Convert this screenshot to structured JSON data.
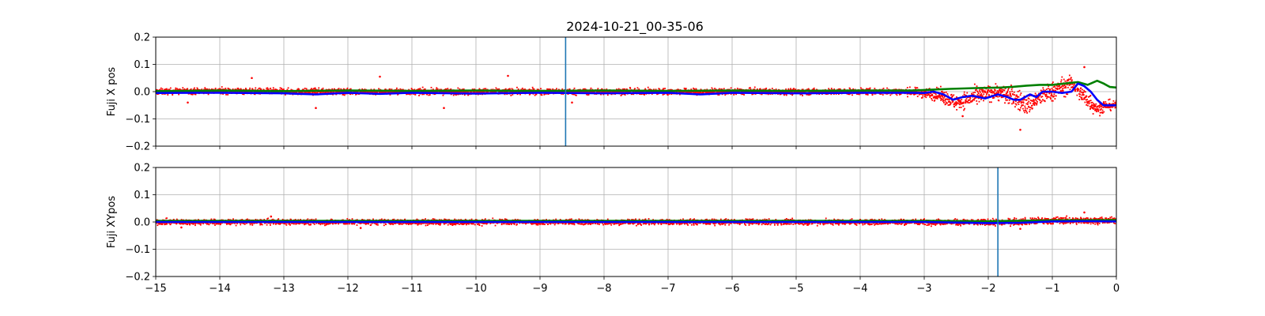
{
  "chart_data": {
    "title": "2024-10-21_00-35-06",
    "type": "scatter",
    "xlim": [
      -15,
      0
    ],
    "xticks": [
      -15,
      -14,
      -13,
      -12,
      -11,
      -10,
      -9,
      -8,
      -7,
      -6,
      -5,
      -4,
      -3,
      -2,
      -1,
      0
    ],
    "xtick_labels": [
      "−15",
      "−14",
      "−13",
      "−12",
      "−11",
      "−10",
      "−9",
      "−8",
      "−7",
      "−6",
      "−5",
      "−4",
      "−3",
      "−2",
      "−1",
      "0"
    ],
    "grid": true,
    "colors": {
      "points": "#ff0000",
      "blue": "#0000ff",
      "green": "#008000",
      "vline": "#1f77b4",
      "grid": "#b0b0b0"
    },
    "panels": [
      {
        "ylabel": "Fuji X pos",
        "ylim": [
          -0.2,
          0.2
        ],
        "yticks": [
          -0.2,
          -0.1,
          0.0,
          0.1,
          0.2
        ],
        "ytick_labels": [
          "−0.2",
          "−0.1",
          "0.0",
          "0.1",
          "0.2"
        ],
        "vline_x": -8.6,
        "scatter_band": [
          [
            -15,
            0.0,
            0.012
          ],
          [
            -14,
            0.003,
            0.012
          ],
          [
            -13,
            0.0,
            0.012
          ],
          [
            -12,
            0.0,
            0.012
          ],
          [
            -11,
            0.0,
            0.012
          ],
          [
            -10,
            0.0,
            0.012
          ],
          [
            -9,
            0.0,
            0.012
          ],
          [
            -8,
            0.0,
            0.012
          ],
          [
            -7,
            0.0,
            0.012
          ],
          [
            -6,
            0.0,
            0.012
          ],
          [
            -5,
            0.0,
            0.012
          ],
          [
            -4,
            0.0,
            0.012
          ],
          [
            -3.2,
            0.0,
            0.015
          ],
          [
            -2.8,
            -0.01,
            0.025
          ],
          [
            -2.5,
            -0.04,
            0.03
          ],
          [
            -2.2,
            -0.02,
            0.035
          ],
          [
            -1.9,
            0.0,
            0.03
          ],
          [
            -1.6,
            -0.02,
            0.04
          ],
          [
            -1.4,
            -0.05,
            0.04
          ],
          [
            -1.1,
            -0.01,
            0.035
          ],
          [
            -0.9,
            0.01,
            0.04
          ],
          [
            -0.7,
            0.03,
            0.03
          ],
          [
            -0.5,
            -0.02,
            0.04
          ],
          [
            -0.3,
            -0.06,
            0.03
          ],
          [
            -0.1,
            -0.05,
            0.02
          ],
          [
            0,
            -0.05,
            0.015
          ]
        ],
        "outliers": [
          [
            -13.5,
            0.05
          ],
          [
            -12.5,
            -0.06
          ],
          [
            -11.5,
            0.055
          ],
          [
            -10.5,
            -0.06
          ],
          [
            -9.5,
            0.058
          ],
          [
            -14.5,
            -0.04
          ],
          [
            -8.5,
            -0.04
          ],
          [
            -1.5,
            -0.14
          ],
          [
            -0.5,
            0.09
          ],
          [
            -2.4,
            -0.09
          ]
        ],
        "blue": [
          [
            -15,
            -0.005
          ],
          [
            -14,
            -0.004
          ],
          [
            -13,
            -0.006
          ],
          [
            -12.5,
            -0.01
          ],
          [
            -12,
            -0.004
          ],
          [
            -11.5,
            -0.008
          ],
          [
            -11,
            -0.004
          ],
          [
            -10,
            -0.007
          ],
          [
            -9,
            -0.004
          ],
          [
            -8,
            -0.006
          ],
          [
            -7,
            -0.004
          ],
          [
            -6.5,
            -0.01
          ],
          [
            -6,
            -0.004
          ],
          [
            -5,
            -0.006
          ],
          [
            -4,
            -0.004
          ],
          [
            -3.2,
            -0.004
          ],
          [
            -3.0,
            -0.005
          ],
          [
            -2.85,
            0.0
          ],
          [
            -2.7,
            -0.01
          ],
          [
            -2.55,
            -0.03
          ],
          [
            -2.4,
            -0.02
          ],
          [
            -2.25,
            -0.015
          ],
          [
            -2.05,
            -0.025
          ],
          [
            -1.85,
            -0.01
          ],
          [
            -1.7,
            -0.02
          ],
          [
            -1.6,
            -0.03
          ],
          [
            -1.5,
            -0.03
          ],
          [
            -1.35,
            -0.01
          ],
          [
            -1.25,
            -0.02
          ],
          [
            -1.15,
            0.0
          ],
          [
            -1.0,
            0.0
          ],
          [
            -0.85,
            -0.005
          ],
          [
            -0.7,
            0.0
          ],
          [
            -0.6,
            0.03
          ],
          [
            -0.5,
            0.02
          ],
          [
            -0.4,
            0.0
          ],
          [
            -0.3,
            -0.03
          ],
          [
            -0.2,
            -0.05
          ],
          [
            -0.1,
            -0.05
          ],
          [
            0,
            -0.05
          ]
        ],
        "green": [
          [
            -15,
            0.002
          ],
          [
            -14,
            0.004
          ],
          [
            -13,
            0.002
          ],
          [
            -12,
            0.004
          ],
          [
            -11,
            0.003
          ],
          [
            -10,
            0.004
          ],
          [
            -9,
            0.003
          ],
          [
            -8,
            0.004
          ],
          [
            -7,
            0.003
          ],
          [
            -6,
            0.004
          ],
          [
            -5,
            0.003
          ],
          [
            -4,
            0.004
          ],
          [
            -3.2,
            0.004
          ],
          [
            -3.0,
            0.006
          ],
          [
            -2.6,
            0.01
          ],
          [
            -2.2,
            0.013
          ],
          [
            -1.8,
            0.015
          ],
          [
            -1.6,
            0.018
          ],
          [
            -1.4,
            0.022
          ],
          [
            -1.2,
            0.025
          ],
          [
            -1.0,
            0.025
          ],
          [
            -0.8,
            0.03
          ],
          [
            -0.6,
            0.035
          ],
          [
            -0.45,
            0.025
          ],
          [
            -0.3,
            0.04
          ],
          [
            -0.2,
            0.03
          ],
          [
            -0.1,
            0.017
          ],
          [
            0,
            0.015
          ]
        ]
      },
      {
        "ylabel": "Fuji XYpos",
        "ylim": [
          -0.2,
          0.2
        ],
        "yticks": [
          -0.2,
          -0.1,
          0.0,
          0.1,
          0.2
        ],
        "ytick_labels": [
          "−0.2",
          "−0.1",
          "0.0",
          "0.1",
          "0.2"
        ],
        "vline_x": -1.85,
        "scatter_band": [
          [
            -15,
            0.0,
            0.011
          ],
          [
            -14,
            0.0,
            0.011
          ],
          [
            -13,
            0.0,
            0.011
          ],
          [
            -12,
            0.0,
            0.011
          ],
          [
            -11,
            0.0,
            0.011
          ],
          [
            -10,
            0.0,
            0.011
          ],
          [
            -9,
            0.0,
            0.011
          ],
          [
            -8,
            0.0,
            0.011
          ],
          [
            -7,
            0.0,
            0.011
          ],
          [
            -6,
            0.0,
            0.011
          ],
          [
            -5,
            0.0,
            0.011
          ],
          [
            -4,
            0.0,
            0.011
          ],
          [
            -3,
            0.0,
            0.011
          ],
          [
            -2,
            -0.002,
            0.012
          ],
          [
            -1,
            0.005,
            0.014
          ],
          [
            0,
            0.005,
            0.012
          ]
        ],
        "outliers": [
          [
            -14.6,
            -0.02
          ],
          [
            -13.2,
            0.02
          ],
          [
            -11.8,
            -0.022
          ],
          [
            -0.5,
            0.035
          ],
          [
            -1.5,
            -0.025
          ]
        ],
        "blue": [
          [
            -15,
            0.0
          ],
          [
            -10,
            0.0
          ],
          [
            -5,
            0.0
          ],
          [
            -3,
            0.0
          ],
          [
            -2,
            -0.004
          ],
          [
            -1.5,
            -0.003
          ],
          [
            -1,
            0.002
          ],
          [
            -0.5,
            0.003
          ],
          [
            0,
            0.002
          ]
        ],
        "green": [
          [
            -15,
            0.004
          ],
          [
            -10,
            0.004
          ],
          [
            -5,
            0.004
          ],
          [
            -3,
            0.004
          ],
          [
            -2,
            0.003
          ],
          [
            -1,
            0.006
          ],
          [
            0,
            0.007
          ]
        ]
      }
    ]
  }
}
